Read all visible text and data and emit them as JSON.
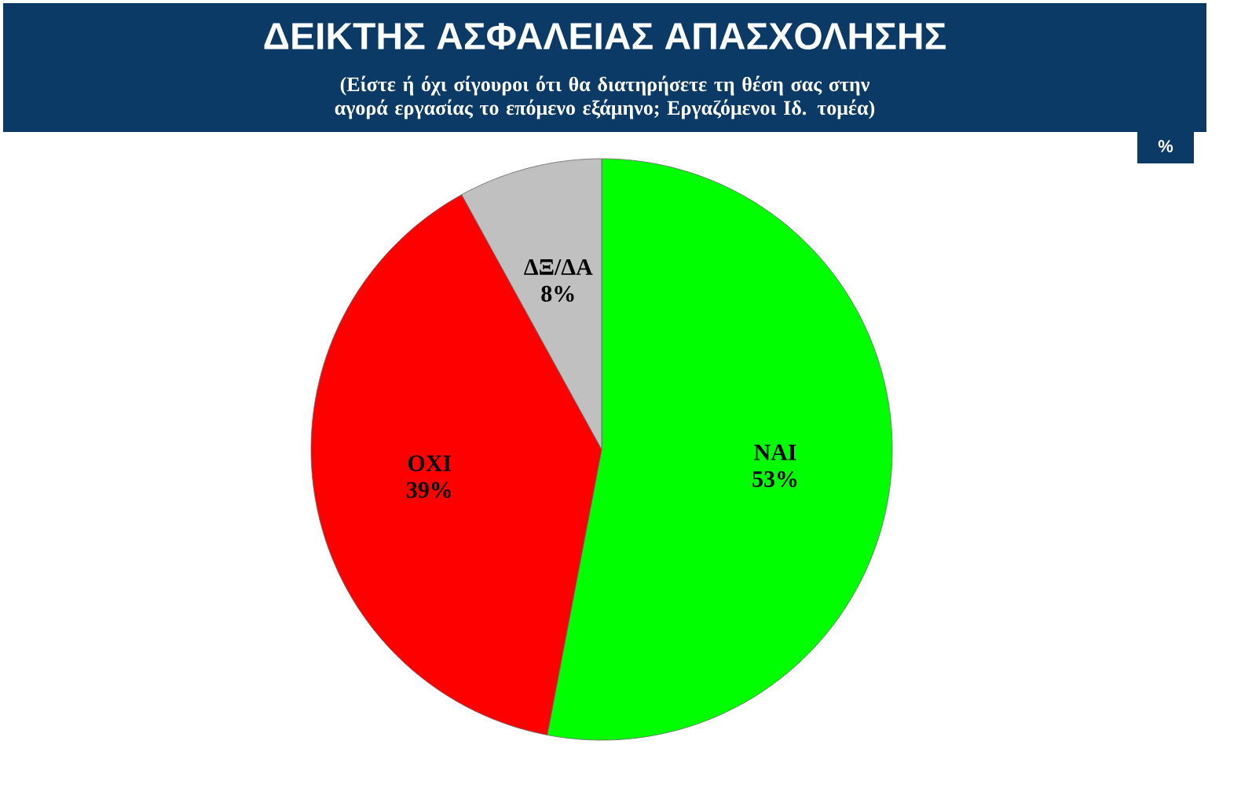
{
  "chart_data": {
    "type": "pie",
    "title": "ΔΕΙΚΤΗΣ ΑΣΦΑΛΕΙΑΣ ΑΠΑΣΧΟΛΗΣΗΣ",
    "subtitle": "(Είστε ή όχι σίγουροι ότι θα διατηρήσετε τη θέση σας στην αγορά εργασίας το επόμενο εξάμηνο; Εργαζόμενοι Ιδ. τομέα)",
    "categories": [
      "ΝΑΙ",
      "ΟΧΙ",
      "ΔΞ/ΔΑ"
    ],
    "values": [
      53,
      39,
      8
    ],
    "value_labels": [
      "53%",
      "39%",
      "8%"
    ],
    "colors": [
      "#00ff00",
      "#ff0000",
      "#c0c0c0"
    ],
    "annotations": [
      "%"
    ]
  }
}
